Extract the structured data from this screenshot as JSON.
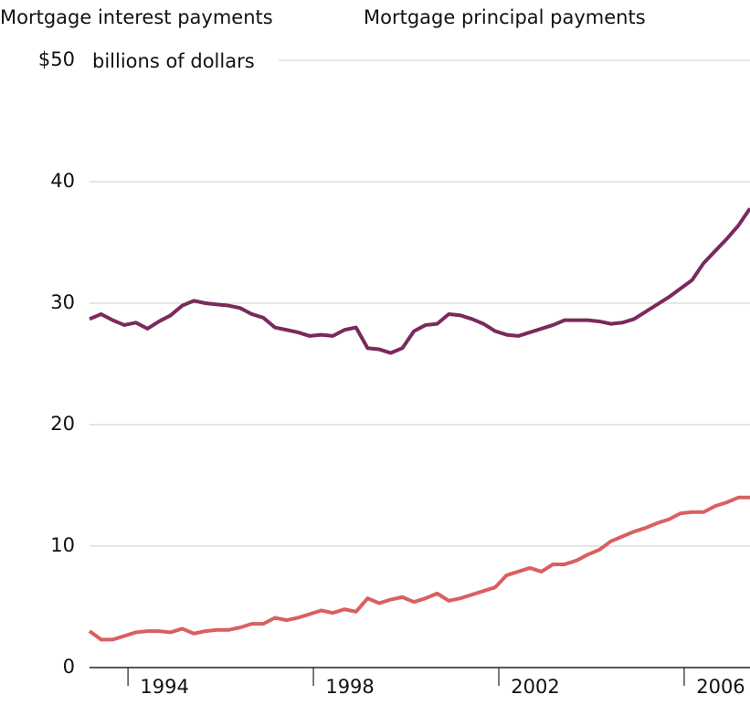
{
  "chart_data": {
    "type": "line",
    "y_label": "billions of dollars",
    "x": [
      1993.17,
      1993.42,
      1993.67,
      1993.92,
      1994.17,
      1994.42,
      1994.67,
      1994.92,
      1995.17,
      1995.42,
      1995.67,
      1995.92,
      1996.17,
      1996.42,
      1996.67,
      1996.92,
      1997.17,
      1997.42,
      1997.67,
      1997.92,
      1998.17,
      1998.42,
      1998.67,
      1998.92,
      1999.17,
      1999.42,
      1999.67,
      1999.92,
      2000.17,
      2000.42,
      2000.67,
      2000.92,
      2001.17,
      2001.42,
      2001.67,
      2001.92,
      2002.17,
      2002.42,
      2002.67,
      2002.92,
      2003.17,
      2003.42,
      2003.67,
      2003.92,
      2004.17,
      2004.42,
      2004.67,
      2004.92,
      2005.17,
      2005.42,
      2005.67,
      2005.92,
      2006.17,
      2006.42,
      2006.67,
      2006.92,
      2007.17,
      2007.42
    ],
    "series": [
      {
        "name": "Mortgage interest payments",
        "color": "#7a2a5c",
        "values": [
          28.7,
          29.1,
          28.6,
          28.2,
          28.4,
          27.9,
          28.5,
          29.0,
          29.8,
          30.2,
          30.0,
          29.9,
          29.8,
          29.6,
          29.1,
          28.8,
          28.0,
          27.8,
          27.6,
          27.3,
          27.4,
          27.3,
          27.8,
          28.0,
          26.3,
          26.2,
          25.9,
          26.3,
          27.7,
          28.2,
          28.3,
          29.1,
          29.0,
          28.7,
          28.3,
          27.7,
          27.4,
          27.3,
          27.6,
          27.9,
          28.2,
          28.6,
          28.6,
          28.6,
          28.5,
          28.3,
          28.4,
          28.7,
          29.3,
          29.9,
          30.5,
          31.2,
          31.9,
          33.3,
          34.3,
          35.3,
          36.4,
          37.8
        ]
      },
      {
        "name": "Mortgage principal payments",
        "color": "#d9605f",
        "values": [
          3.0,
          2.3,
          2.3,
          2.6,
          2.9,
          3.0,
          3.0,
          2.9,
          3.2,
          2.8,
          3.0,
          3.1,
          3.1,
          3.3,
          3.6,
          3.6,
          4.1,
          3.9,
          4.1,
          4.4,
          4.7,
          4.5,
          4.8,
          4.6,
          5.7,
          5.3,
          5.6,
          5.8,
          5.4,
          5.7,
          6.1,
          5.5,
          5.7,
          6.0,
          6.3,
          6.6,
          7.6,
          7.9,
          8.2,
          7.9,
          8.5,
          8.5,
          8.8,
          9.3,
          9.7,
          10.4,
          10.8,
          11.2,
          11.5,
          11.9,
          12.2,
          12.7,
          12.8,
          12.8,
          13.3,
          13.6,
          14.0,
          14.0
        ]
      }
    ],
    "xlim": [
      1993.17,
      2007.42
    ],
    "xticks": [
      1994,
      1998,
      2002,
      2006
    ],
    "ylim": [
      0,
      50
    ],
    "yticks": [
      0,
      10,
      20,
      30,
      40,
      {
        "value": 50,
        "label": "$50"
      }
    ],
    "grid": true
  }
}
